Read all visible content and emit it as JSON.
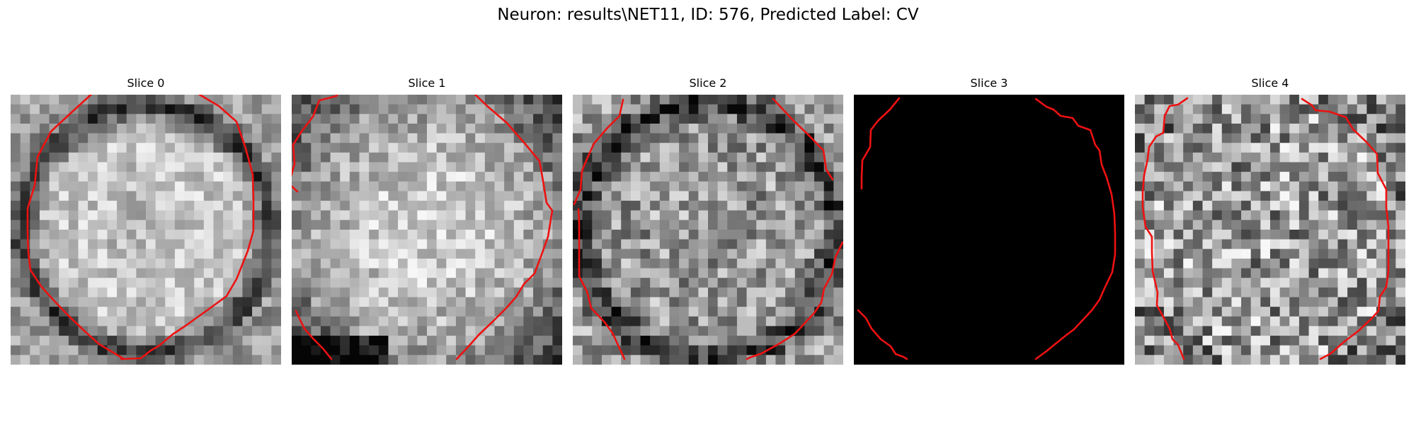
{
  "title": "Neuron: results\\NET11, ID: 576, Predicted Label: CV",
  "colors": {
    "contour": "#ee1111",
    "background": "#ffffff"
  },
  "slices": [
    {
      "title": "Slice 0",
      "image": "grayscale-em-patch",
      "texture": "bright-center"
    },
    {
      "title": "Slice 1",
      "image": "grayscale-em-patch",
      "texture": "bright-blob"
    },
    {
      "title": "Slice 2",
      "image": "grayscale-em-patch",
      "texture": "mottled"
    },
    {
      "title": "Slice 3",
      "image": "black-patch",
      "texture": "black"
    },
    {
      "title": "Slice 4",
      "image": "grayscale-em-patch",
      "texture": "noisy"
    }
  ]
}
